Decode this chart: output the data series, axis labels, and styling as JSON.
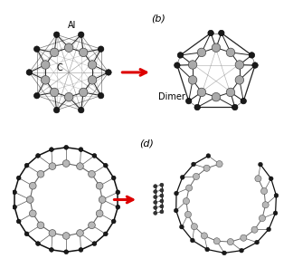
{
  "bg_color": "#ffffff",
  "atom_color_C": "#aaaaaa",
  "atom_color_Al": "#1a1a1a",
  "bond_color": "#222222",
  "arrow_color": "#dd0000",
  "label_Al": "Al",
  "label_C": "C",
  "label_b": "(b)",
  "label_d": "(d)",
  "label_dimer": "Dimer",
  "n_ring_a": 10,
  "r_C_a": 0.092,
  "r_Al_a": 0.148,
  "n_ring_b": 10,
  "r_C_b": 0.092,
  "r_Al_b": 0.148,
  "n_outer_c": 22,
  "n_inner_c": 16,
  "r_outer_c": 0.195,
  "r_inner_c": 0.135
}
